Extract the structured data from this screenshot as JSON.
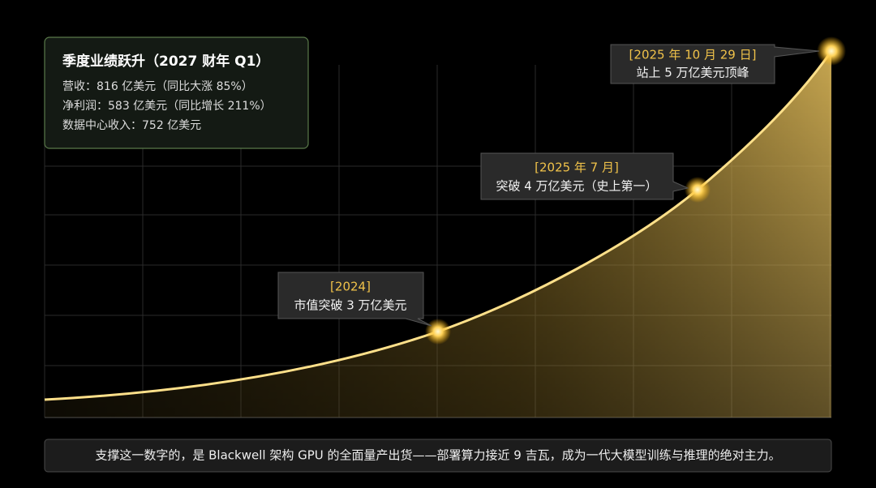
{
  "info_box": {
    "title": "季度业绩跃升（2027 财年 Q1）",
    "lines": [
      "营收：816 亿美元（同比大涨 85%）",
      "净利润：583 亿美元（同比增长 211%）",
      "数据中心收入：752 亿美元"
    ]
  },
  "milestones": [
    {
      "date": "[2024]",
      "text": "市值突破 3 万亿美元"
    },
    {
      "date": "[2025 年 7 月]",
      "text": "突破 4 万亿美元（史上第一）"
    },
    {
      "date": "[2025 年 10 月 29 日]",
      "text": "站上 5 万亿美元顶峰"
    }
  ],
  "footer": "支撑这一数字的，是 Blackwell 架构 GPU 的全面量产出货——部署算力接近 9 吉瓦，成为一代大模型训练与推理的绝对主力。"
}
